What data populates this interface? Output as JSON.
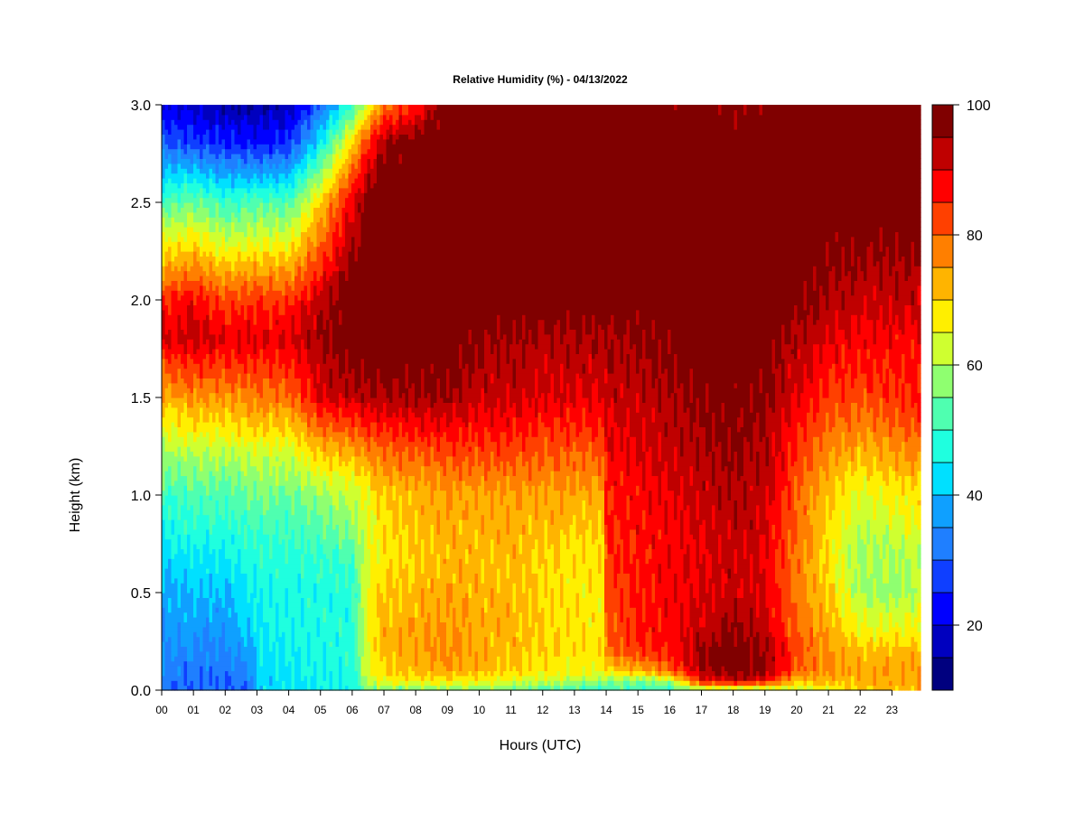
{
  "chart_data": {
    "type": "heatmap",
    "title": "Relative Humidity (%) - 04/13/2022",
    "xlabel": "Hours (UTC)",
    "ylabel": "Height (km)",
    "xlim": [
      0,
      23.9
    ],
    "ylim": [
      0,
      3.0
    ],
    "x_ticks": [
      "00",
      "01",
      "02",
      "03",
      "04",
      "05",
      "06",
      "07",
      "08",
      "09",
      "10",
      "11",
      "12",
      "13",
      "14",
      "15",
      "16",
      "17",
      "18",
      "19",
      "20",
      "21",
      "22",
      "23"
    ],
    "y_ticks": [
      "0.0",
      "0.5",
      "1.0",
      "1.5",
      "2.0",
      "2.5",
      "3.0"
    ],
    "colorbar": {
      "min": 10,
      "max": 100,
      "step": 5,
      "tick_labels": [
        "20",
        "40",
        "60",
        "80",
        "100"
      ],
      "colors": [
        "#00007f",
        "#0000bf",
        "#0000ff",
        "#0f3fff",
        "#1f7fff",
        "#0fa0ff",
        "#00e0ff",
        "#1fffdf",
        "#4fffb0",
        "#8fff70",
        "#cfff30",
        "#ffef00",
        "#ffb400",
        "#ff7f00",
        "#ff4000",
        "#ff0000",
        "#bf0000",
        "#800000"
      ]
    },
    "heights_km": [
      0.0,
      0.05,
      0.1,
      0.2,
      0.3,
      0.5,
      0.7,
      1.0,
      1.2,
      1.5,
      1.8,
      2.0,
      2.5,
      2.8,
      3.0
    ],
    "profiles": [
      {
        "hour": 0.0,
        "rh": [
          32,
          32,
          33,
          35,
          36,
          38,
          42,
          50,
          58,
          72,
          90,
          85,
          52,
          30,
          20
        ]
      },
      {
        "hour": 1.0,
        "rh": [
          30,
          30,
          32,
          34,
          36,
          40,
          45,
          52,
          60,
          76,
          92,
          88,
          55,
          28,
          18
        ]
      },
      {
        "hour": 2.0,
        "rh": [
          30,
          30,
          32,
          34,
          36,
          40,
          45,
          52,
          60,
          75,
          90,
          82,
          50,
          25,
          16
        ]
      },
      {
        "hour": 2.9,
        "rh": [
          32,
          33,
          35,
          38,
          42,
          45,
          48,
          55,
          62,
          78,
          90,
          84,
          52,
          24,
          15
        ]
      },
      {
        "hour": 3.0,
        "rh": [
          42,
          42,
          43,
          44,
          45,
          46,
          48,
          55,
          62,
          78,
          90,
          84,
          52,
          24,
          15
        ]
      },
      {
        "hour": 4.0,
        "rh": [
          44,
          44,
          45,
          45,
          46,
          46,
          48,
          55,
          62,
          78,
          90,
          84,
          52,
          26,
          17
        ]
      },
      {
        "hour": 5.0,
        "rh": [
          45,
          45,
          46,
          46,
          47,
          47,
          50,
          58,
          70,
          90,
          95,
          92,
          70,
          45,
          30
        ]
      },
      {
        "hour": 6.0,
        "rh": [
          46,
          46,
          47,
          47,
          48,
          48,
          52,
          62,
          72,
          92,
          100,
          100,
          90,
          70,
          50
        ]
      },
      {
        "hour": 6.5,
        "rh": [
          55,
          62,
          64,
          65,
          66,
          66,
          64,
          66,
          76,
          94,
          100,
          100,
          98,
          85,
          65
        ]
      },
      {
        "hour": 7.0,
        "rh": [
          55,
          66,
          70,
          72,
          72,
          70,
          68,
          70,
          78,
          94,
          100,
          100,
          100,
          95,
          78
        ]
      },
      {
        "hour": 8.0,
        "rh": [
          56,
          68,
          72,
          74,
          74,
          72,
          70,
          72,
          80,
          95,
          100,
          100,
          100,
          100,
          85
        ]
      },
      {
        "hour": 9.0,
        "rh": [
          56,
          68,
          74,
          76,
          76,
          74,
          72,
          74,
          82,
          95,
          100,
          100,
          100,
          100,
          100
        ]
      },
      {
        "hour": 10.0,
        "rh": [
          56,
          66,
          72,
          74,
          74,
          72,
          72,
          74,
          82,
          92,
          96,
          100,
          100,
          100,
          100
        ]
      },
      {
        "hour": 11.0,
        "rh": [
          54,
          64,
          70,
          72,
          72,
          72,
          72,
          74,
          82,
          92,
          95,
          100,
          100,
          100,
          100
        ]
      },
      {
        "hour": 12.0,
        "rh": [
          52,
          62,
          68,
          70,
          70,
          70,
          70,
          74,
          80,
          90,
          94,
          100,
          100,
          100,
          100
        ]
      },
      {
        "hour": 13.0,
        "rh": [
          50,
          60,
          66,
          68,
          68,
          68,
          68,
          74,
          80,
          90,
          94,
          99,
          100,
          100,
          100
        ]
      },
      {
        "hour": 13.9,
        "rh": [
          50,
          60,
          66,
          68,
          68,
          68,
          68,
          74,
          80,
          90,
          94,
          99,
          100,
          100,
          100
        ]
      },
      {
        "hour": 14.0,
        "rh": [
          50,
          58,
          70,
          78,
          80,
          82,
          84,
          86,
          88,
          92,
          95,
          99,
          100,
          100,
          100
        ]
      },
      {
        "hour": 15.0,
        "rh": [
          50,
          56,
          72,
          84,
          86,
          86,
          86,
          88,
          90,
          93,
          96,
          99,
          100,
          100,
          97
        ]
      },
      {
        "hour": 16.0,
        "rh": [
          50,
          60,
          80,
          86,
          88,
          88,
          88,
          90,
          92,
          94,
          97,
          99,
          100,
          100,
          98
        ]
      },
      {
        "hour": 17.0,
        "rh": [
          56,
          88,
          94,
          96,
          92,
          90,
          90,
          92,
          94,
          96,
          100,
          100,
          100,
          100,
          98
        ]
      },
      {
        "hour": 18.0,
        "rh": [
          58,
          92,
          98,
          100,
          96,
          92,
          92,
          94,
          96,
          98,
          100,
          100,
          100,
          98,
          97
        ]
      },
      {
        "hour": 19.0,
        "rh": [
          58,
          88,
          96,
          96,
          92,
          90,
          90,
          92,
          94,
          96,
          98,
          100,
          100,
          100,
          97
        ]
      },
      {
        "hour": 20.0,
        "rh": [
          62,
          72,
          80,
          82,
          80,
          78,
          78,
          80,
          84,
          90,
          94,
          98,
          100,
          100,
          100
        ]
      },
      {
        "hour": 21.0,
        "rh": [
          66,
          72,
          76,
          76,
          74,
          70,
          68,
          70,
          76,
          84,
          90,
          94,
          100,
          100,
          100
        ]
      },
      {
        "hour": 22.0,
        "rh": [
          70,
          72,
          74,
          72,
          66,
          60,
          58,
          64,
          72,
          82,
          88,
          92,
          100,
          100,
          100
        ]
      },
      {
        "hour": 23.0,
        "rh": [
          72,
          74,
          74,
          72,
          66,
          58,
          60,
          66,
          74,
          84,
          88,
          92,
          100,
          100,
          100
        ]
      },
      {
        "hour": 23.9,
        "rh": [
          72,
          74,
          74,
          72,
          68,
          60,
          62,
          68,
          76,
          86,
          88,
          92,
          100,
          100,
          100
        ]
      }
    ]
  }
}
